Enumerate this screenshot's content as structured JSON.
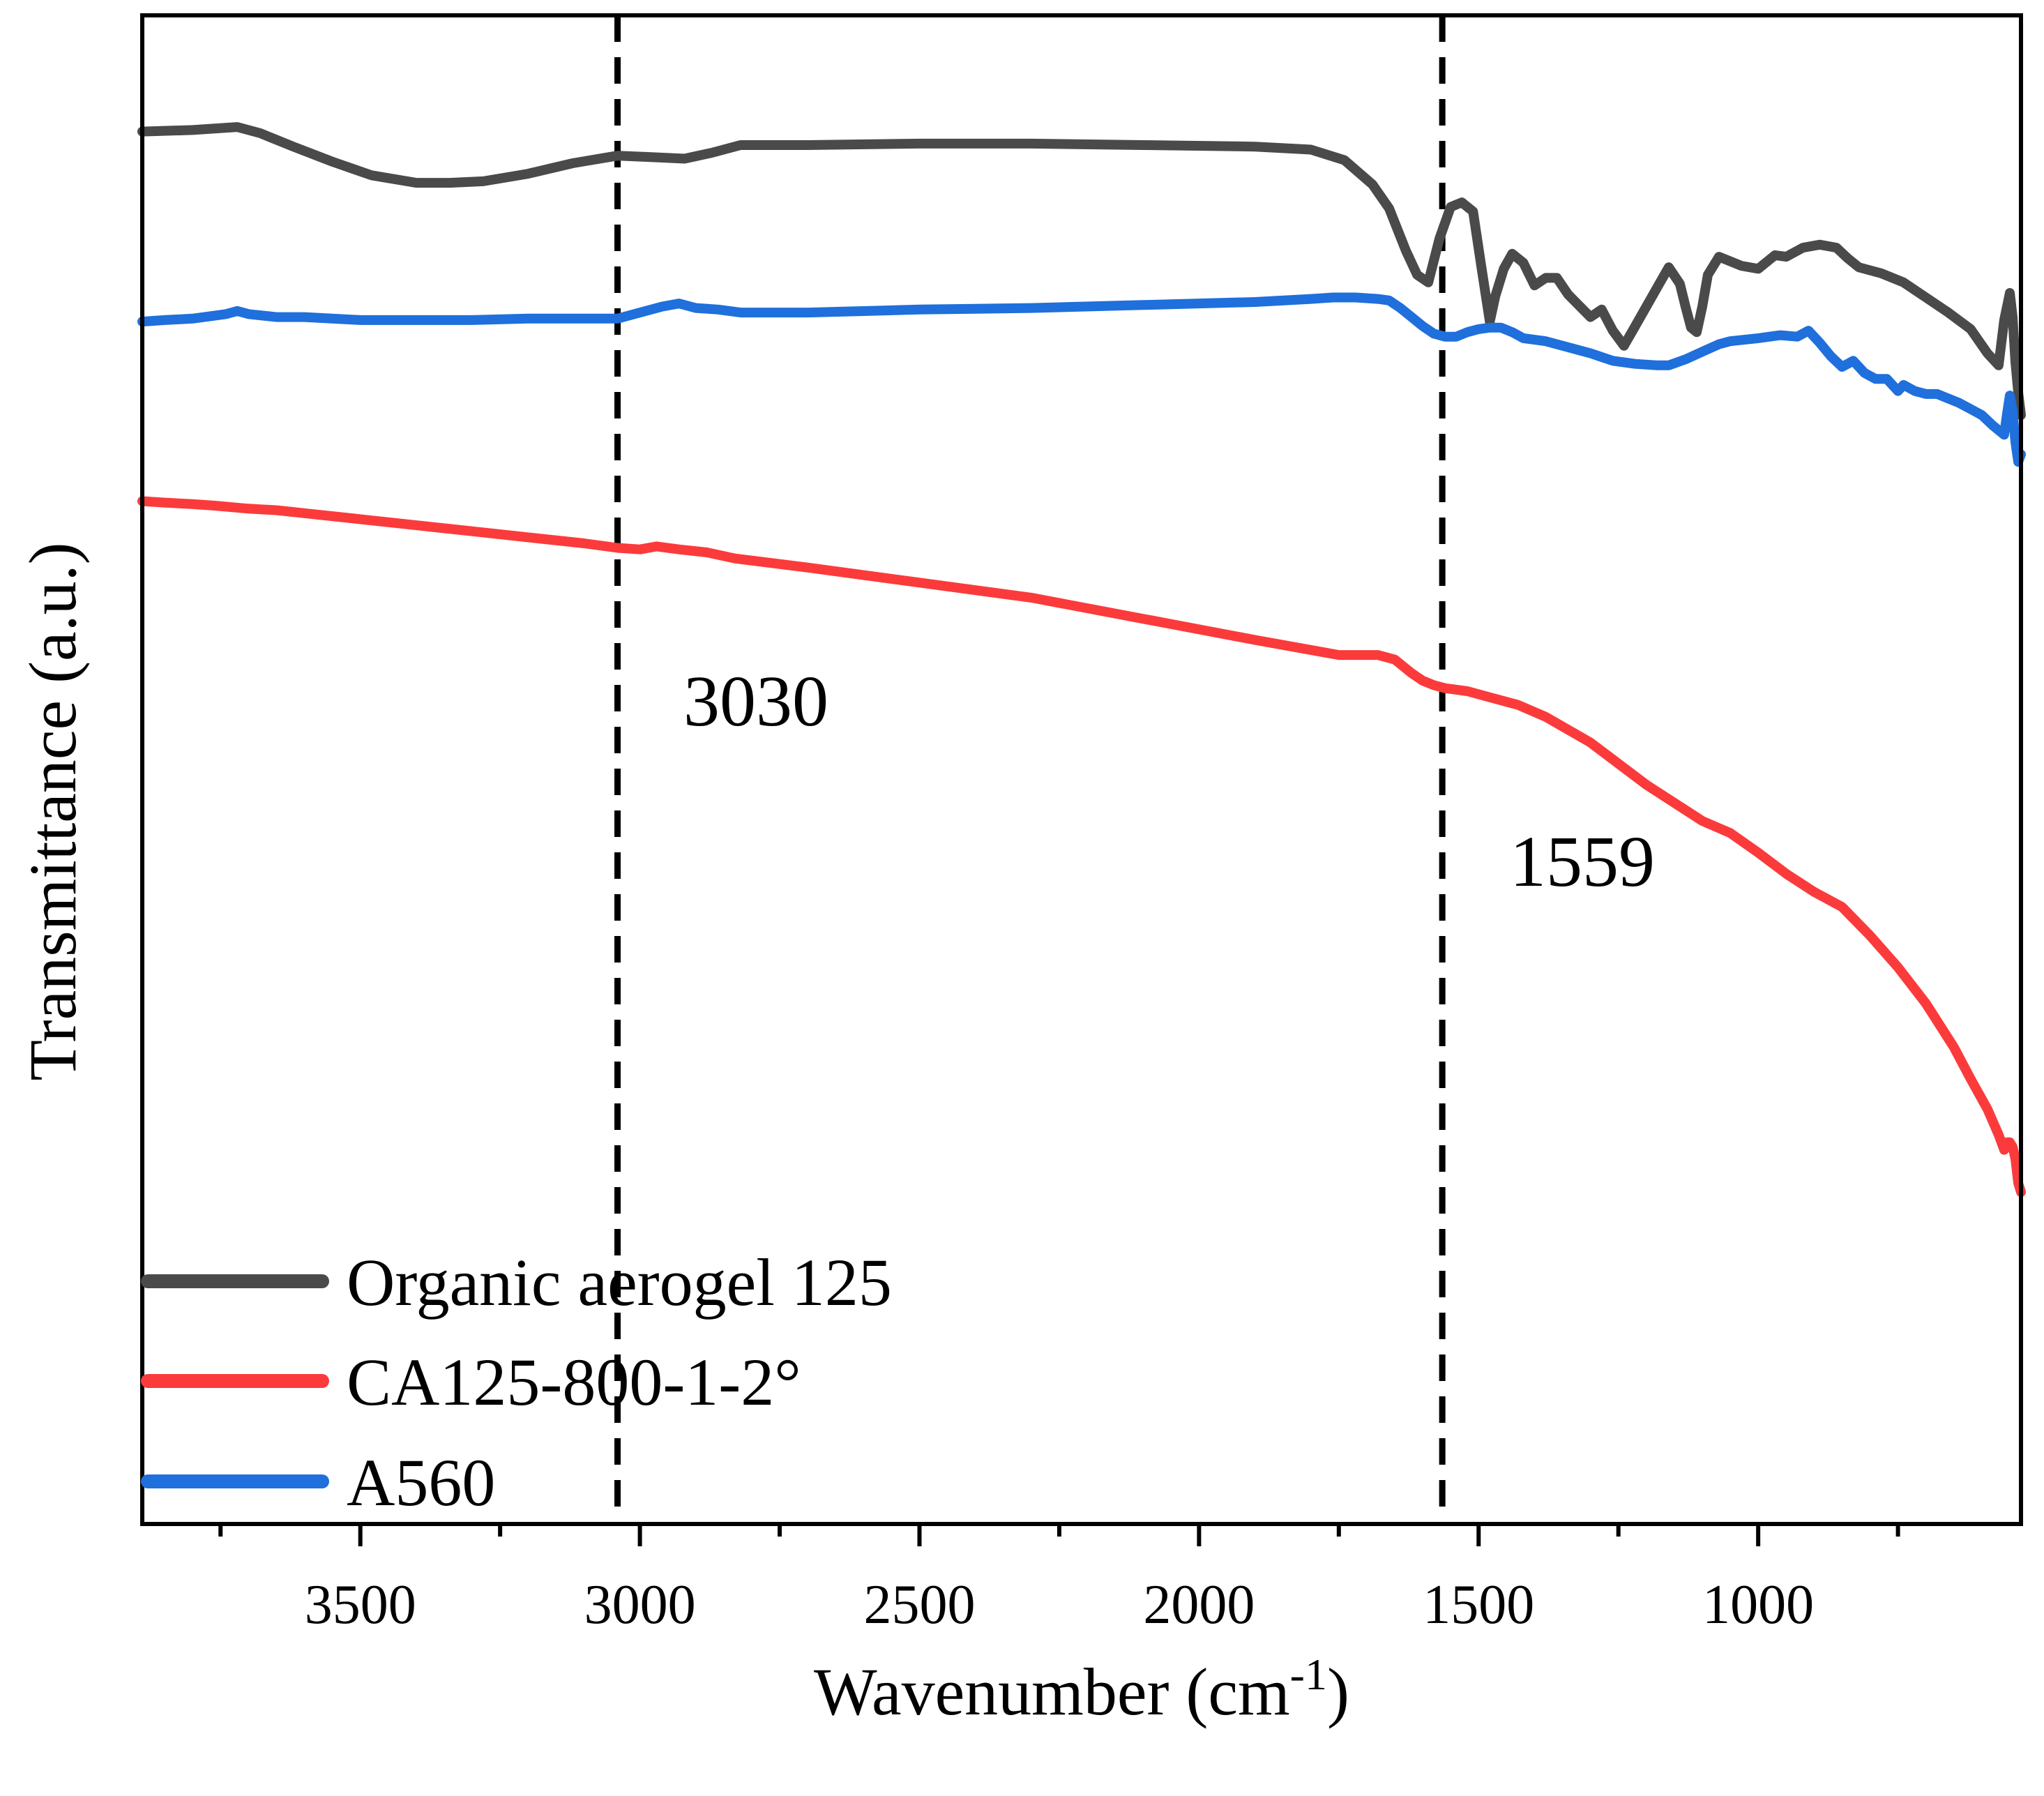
{
  "chart_data": {
    "type": "line",
    "title": "",
    "xlabel": "Wavenumber (cm",
    "xlabel_sup": "-1",
    "xlabel_close": ")",
    "ylabel": "Transmittance (a.u.)",
    "x_reversed": true,
    "xlim": [
      3890,
      530
    ],
    "ylim": [
      0,
      100
    ],
    "xticks": [
      3500,
      3000,
      2500,
      2000,
      1500,
      1000
    ],
    "xtick_labels": [
      "3500",
      "3000",
      "2500",
      "2000",
      "1500",
      "1000"
    ],
    "minor_xticks": [
      3750,
      3250,
      2750,
      2250,
      1750,
      1250,
      750
    ],
    "grid": false,
    "legend_position": "bottom-left",
    "vlines": [
      {
        "x": 3040,
        "label": "3030",
        "style": "dashed"
      },
      {
        "x": 1565,
        "label": "1559",
        "style": "dashed"
      }
    ],
    "series": [
      {
        "name": "Organic aerogel 125",
        "color": "#4a4a4a",
        "x": [
          3890,
          3800,
          3720,
          3680,
          3620,
          3550,
          3480,
          3400,
          3340,
          3280,
          3200,
          3120,
          3040,
          2980,
          2920,
          2870,
          2820,
          2700,
          2500,
          2300,
          2100,
          1900,
          1800,
          1740,
          1690,
          1660,
          1630,
          1610,
          1590,
          1570,
          1550,
          1530,
          1510,
          1495,
          1480,
          1470,
          1455,
          1440,
          1420,
          1400,
          1380,
          1360,
          1340,
          1300,
          1280,
          1260,
          1240,
          1220,
          1200,
          1180,
          1160,
          1140,
          1130,
          1120,
          1110,
          1100,
          1090,
          1070,
          1050,
          1030,
          1000,
          970,
          950,
          920,
          890,
          860,
          840,
          820,
          780,
          740,
          700,
          660,
          620,
          590,
          570,
          560,
          550,
          545,
          540,
          535,
          530
        ],
        "y": [
          92.3,
          92.4,
          92.6,
          92.2,
          91.3,
          90.3,
          89.4,
          88.9,
          88.9,
          89.0,
          89.5,
          90.2,
          90.7,
          90.6,
          90.5,
          90.9,
          91.4,
          91.4,
          91.5,
          91.5,
          91.4,
          91.3,
          91.1,
          90.4,
          88.8,
          87.2,
          84.4,
          82.8,
          82.3,
          85.2,
          87.3,
          87.6,
          87.0,
          83.3,
          79.7,
          81.4,
          83.2,
          84.2,
          83.6,
          82.1,
          82.6,
          82.6,
          81.5,
          80.0,
          80.5,
          79.1,
          78.1,
          79.4,
          80.7,
          82.0,
          83.3,
          82.2,
          80.7,
          79.3,
          79.0,
          80.7,
          82.8,
          84.0,
          83.7,
          83.4,
          83.2,
          84.1,
          84.0,
          84.6,
          84.8,
          84.6,
          83.9,
          83.3,
          82.9,
          82.3,
          81.3,
          80.3,
          79.2,
          77.6,
          76.8,
          79.8,
          81.6,
          80.0,
          77.0,
          75.0,
          73.5
        ]
      },
      {
        "name": "CA125-800-1-2°",
        "color": "#fb3b3b",
        "x": [
          3890,
          3850,
          3800,
          3760,
          3700,
          3650,
          3600,
          3500,
          3400,
          3300,
          3200,
          3100,
          3040,
          3000,
          2970,
          2930,
          2880,
          2830,
          2700,
          2500,
          2300,
          2100,
          1900,
          1750,
          1680,
          1650,
          1620,
          1600,
          1580,
          1560,
          1520,
          1480,
          1430,
          1380,
          1300,
          1200,
          1100,
          1050,
          1000,
          950,
          900,
          850,
          800,
          750,
          700,
          650,
          620,
          590,
          570,
          560,
          555,
          550,
          545,
          540,
          535,
          530
        ],
        "y": [
          67.8,
          67.7,
          67.6,
          67.5,
          67.3,
          67.2,
          67.0,
          66.6,
          66.2,
          65.8,
          65.4,
          65.0,
          64.7,
          64.6,
          64.8,
          64.6,
          64.4,
          64.0,
          63.4,
          62.4,
          61.4,
          60.0,
          58.6,
          57.6,
          57.6,
          57.3,
          56.4,
          55.9,
          55.6,
          55.4,
          55.2,
          54.8,
          54.3,
          53.5,
          51.8,
          49.0,
          46.6,
          45.8,
          44.5,
          43.1,
          41.9,
          40.9,
          39.0,
          36.9,
          34.5,
          31.6,
          29.5,
          27.5,
          25.8,
          24.8,
          25.3,
          25.3,
          25.0,
          24.2,
          22.6,
          22.0
        ]
      },
      {
        "name": "A560",
        "color": "#1f6fdc",
        "x": [
          3890,
          3850,
          3800,
          3740,
          3720,
          3700,
          3650,
          3600,
          3500,
          3400,
          3300,
          3200,
          3100,
          3040,
          3000,
          2960,
          2930,
          2900,
          2860,
          2820,
          2700,
          2500,
          2300,
          2100,
          1900,
          1800,
          1760,
          1720,
          1680,
          1660,
          1640,
          1620,
          1600,
          1580,
          1560,
          1540,
          1520,
          1500,
          1480,
          1460,
          1440,
          1420,
          1380,
          1340,
          1300,
          1260,
          1220,
          1180,
          1160,
          1130,
          1100,
          1070,
          1050,
          1000,
          960,
          930,
          910,
          890,
          870,
          850,
          830,
          810,
          790,
          770,
          750,
          740,
          720,
          700,
          680,
          660,
          640,
          620,
          600,
          580,
          560,
          555,
          550,
          545,
          540,
          535,
          530
        ],
        "y": [
          79.7,
          79.8,
          79.9,
          80.2,
          80.4,
          80.2,
          80.0,
          80.0,
          79.8,
          79.8,
          79.8,
          79.9,
          79.9,
          79.9,
          80.3,
          80.7,
          80.9,
          80.6,
          80.5,
          80.3,
          80.3,
          80.5,
          80.6,
          80.8,
          81.0,
          81.2,
          81.3,
          81.3,
          81.2,
          81.1,
          80.6,
          80.0,
          79.4,
          78.9,
          78.7,
          78.7,
          79.0,
          79.2,
          79.3,
          79.3,
          79.0,
          78.6,
          78.4,
          78.0,
          77.6,
          77.1,
          76.9,
          76.8,
          76.8,
          77.2,
          77.7,
          78.2,
          78.4,
          78.6,
          78.8,
          78.7,
          79.1,
          78.3,
          77.4,
          76.7,
          77.1,
          76.3,
          75.9,
          75.9,
          75.1,
          75.5,
          75.1,
          74.9,
          74.9,
          74.6,
          74.3,
          73.9,
          73.5,
          72.8,
          72.2,
          73.6,
          74.8,
          73.8,
          71.7,
          70.4,
          70.9
        ]
      }
    ]
  }
}
